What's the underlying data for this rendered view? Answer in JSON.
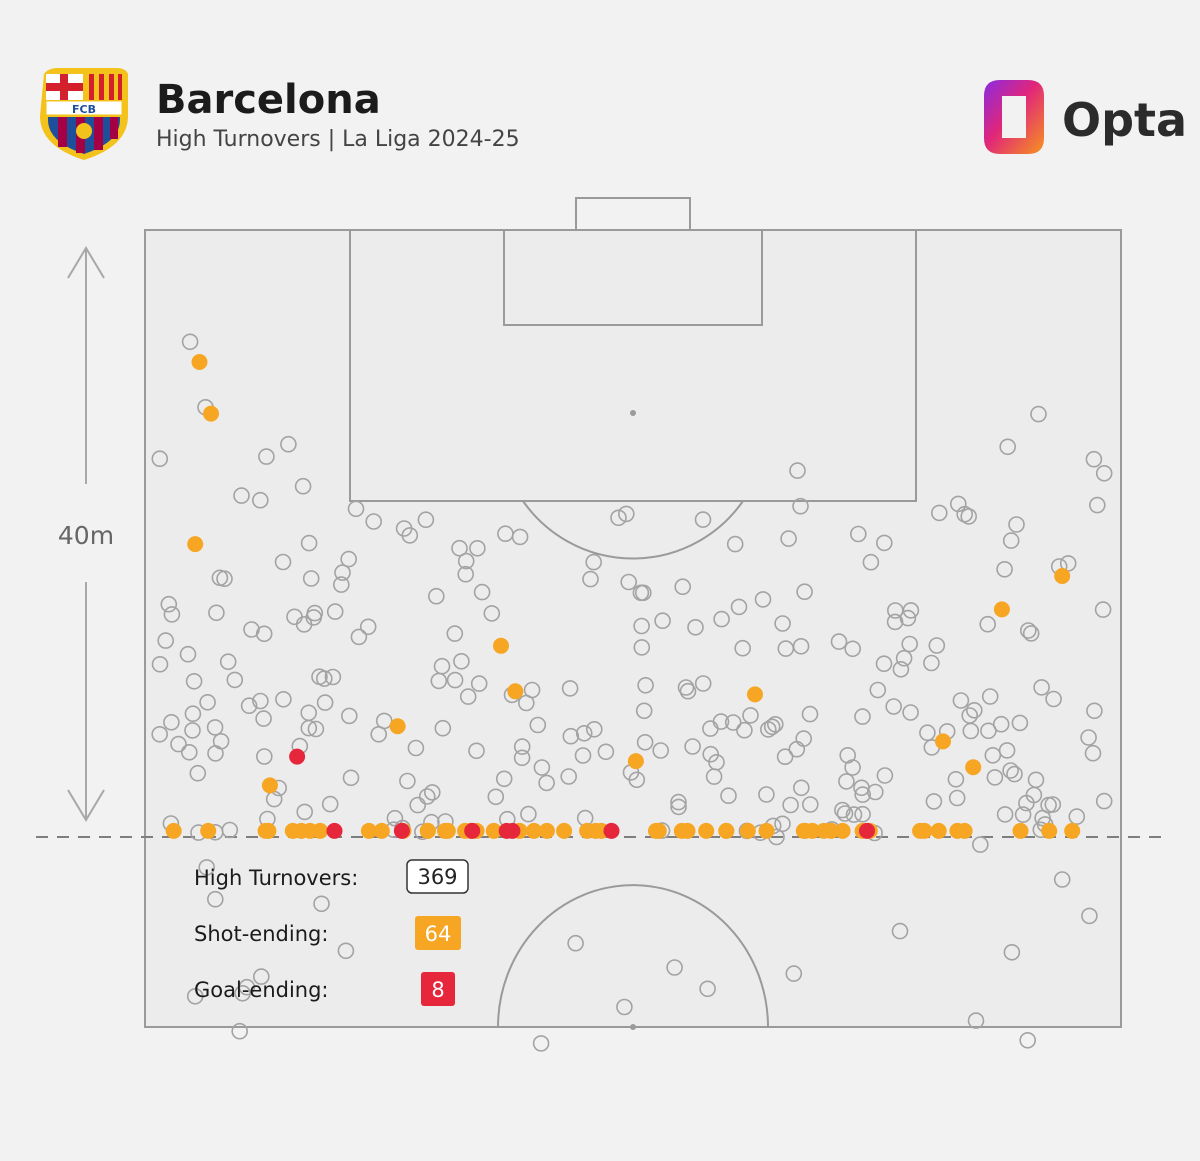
{
  "header": {
    "team": "Barcelona",
    "subtitle": "High Turnovers | La Liga 2024-25",
    "crest_letters": "FCB",
    "brand": "Opta"
  },
  "colors": {
    "background": "#f2f2f2",
    "pitch_fill": "#ececec",
    "pitch_line": "#9a9a9a",
    "turnover_ring": "#a3a3a3",
    "shot": "#f6a623",
    "goal": "#e5263b",
    "crest_blue": "#1f4e9b",
    "crest_red": "#a50044",
    "crest_gold": "#f3c21b"
  },
  "distance_marker": {
    "label": "40m",
    "meters": 40
  },
  "legend": [
    {
      "label": "High Turnovers:",
      "value": "369",
      "style": "outline"
    },
    {
      "label": "Shot-ending:",
      "value": "64",
      "style": "shot"
    },
    {
      "label": "Goal-ending:",
      "value": "8",
      "style": "goal"
    }
  ],
  "chart_data": {
    "type": "scatter",
    "x_range_m": [
      0,
      68
    ],
    "y_range_m_from_goal_line": [
      0,
      40
    ],
    "counts": {
      "turnovers": 369,
      "shot_ending": 64,
      "goal_ending": 8
    },
    "shot_ending": [
      [
        3.8,
        8.7
      ],
      [
        4.6,
        12.1
      ],
      [
        3.5,
        20.7
      ],
      [
        8.7,
        36.6
      ],
      [
        17.6,
        32.7
      ],
      [
        25.8,
        30.4
      ],
      [
        24.8,
        27.4
      ],
      [
        34.2,
        35.0
      ],
      [
        42.5,
        30.6
      ],
      [
        57.7,
        35.4
      ],
      [
        59.7,
        25.0
      ],
      [
        55.6,
        33.7
      ],
      [
        63.9,
        22.8
      ],
      [
        2.0,
        47.5
      ],
      [
        4.4,
        49.6
      ],
      [
        8.6,
        48.0
      ],
      [
        12.2,
        46.3
      ],
      [
        11.5,
        48.1
      ],
      [
        18.0,
        49.1
      ],
      [
        19.7,
        48.8
      ],
      [
        22.7,
        46.5
      ],
      [
        26.1,
        49.4
      ],
      [
        27.1,
        48.4
      ],
      [
        31.8,
        48.3
      ],
      [
        24.3,
        41.7
      ],
      [
        28.0,
        43.6
      ],
      [
        29.2,
        44.5
      ],
      [
        30.8,
        45.4
      ],
      [
        35.8,
        41.5
      ],
      [
        37.8,
        44.2
      ],
      [
        43.3,
        44.1
      ],
      [
        46.0,
        46.9
      ],
      [
        46.5,
        48.2
      ],
      [
        45.9,
        49.8
      ],
      [
        54.0,
        45.4
      ],
      [
        55.3,
        43.7
      ],
      [
        56.6,
        41.6
      ],
      [
        50.5,
        41.7
      ],
      [
        47.3,
        42.3
      ],
      [
        48.6,
        50.8
      ],
      [
        57.1,
        49.2
      ],
      [
        63.0,
        46.5
      ],
      [
        64.6,
        49.1
      ],
      [
        8.4,
        51.4
      ],
      [
        10.3,
        52.6
      ],
      [
        15.6,
        52.2
      ],
      [
        19.7,
        47.8
      ],
      [
        21.1,
        49.0
      ],
      [
        23.1,
        47.3
      ],
      [
        20.9,
        52.4
      ],
      [
        22.3,
        51.8
      ],
      [
        35.6,
        47.3
      ],
      [
        37.4,
        46.9
      ],
      [
        39.1,
        48.8
      ],
      [
        40.5,
        47.9
      ],
      [
        47.8,
        48.8
      ],
      [
        50.0,
        50.0
      ],
      [
        54.3,
        52.2
      ],
      [
        42.0,
        52.0
      ],
      [
        61.0,
        48.0
      ],
      [
        16.5,
        53.0
      ],
      [
        10.9,
        53.6
      ],
      [
        40.5,
        49.5
      ],
      [
        31.4,
        52.0
      ]
    ],
    "goal_ending": [
      [
        10.6,
        34.7
      ],
      [
        25.6,
        40.5
      ],
      [
        17.9,
        44.2
      ],
      [
        32.5,
        43.0
      ],
      [
        22.8,
        46.0
      ],
      [
        50.3,
        45.0
      ],
      [
        25.2,
        53.3
      ],
      [
        13.2,
        56.6
      ]
    ],
    "turnover_sample": [
      [
        3.5,
        50.5
      ],
      [
        6.8,
        50.3
      ],
      [
        6.6,
        52.8
      ],
      [
        8.1,
        49.2
      ],
      [
        9.0,
        37.5
      ],
      [
        12.3,
        44.4
      ],
      [
        14.0,
        47.5
      ],
      [
        19.0,
        37.9
      ],
      [
        18.8,
        43.0
      ],
      [
        4.3,
        42.0
      ],
      [
        4.9,
        44.1
      ],
      [
        7.1,
        49.9
      ],
      [
        44.0,
        40.0
      ],
      [
        50.0,
        38.5
      ],
      [
        56.5,
        36.2
      ],
      [
        58.2,
        40.5
      ],
      [
        63.9,
        42.8
      ],
      [
        65.8,
        45.2
      ],
      [
        61.5,
        53.4
      ],
      [
        57.9,
        52.1
      ],
      [
        45.2,
        49.0
      ],
      [
        39.2,
        50.0
      ],
      [
        30.0,
        47.0
      ],
      [
        27.6,
        53.6
      ],
      [
        33.4,
        51.2
      ],
      [
        36.9,
        48.6
      ],
      [
        52.6,
        46.2
      ],
      [
        60.4,
        47.6
      ]
    ]
  }
}
